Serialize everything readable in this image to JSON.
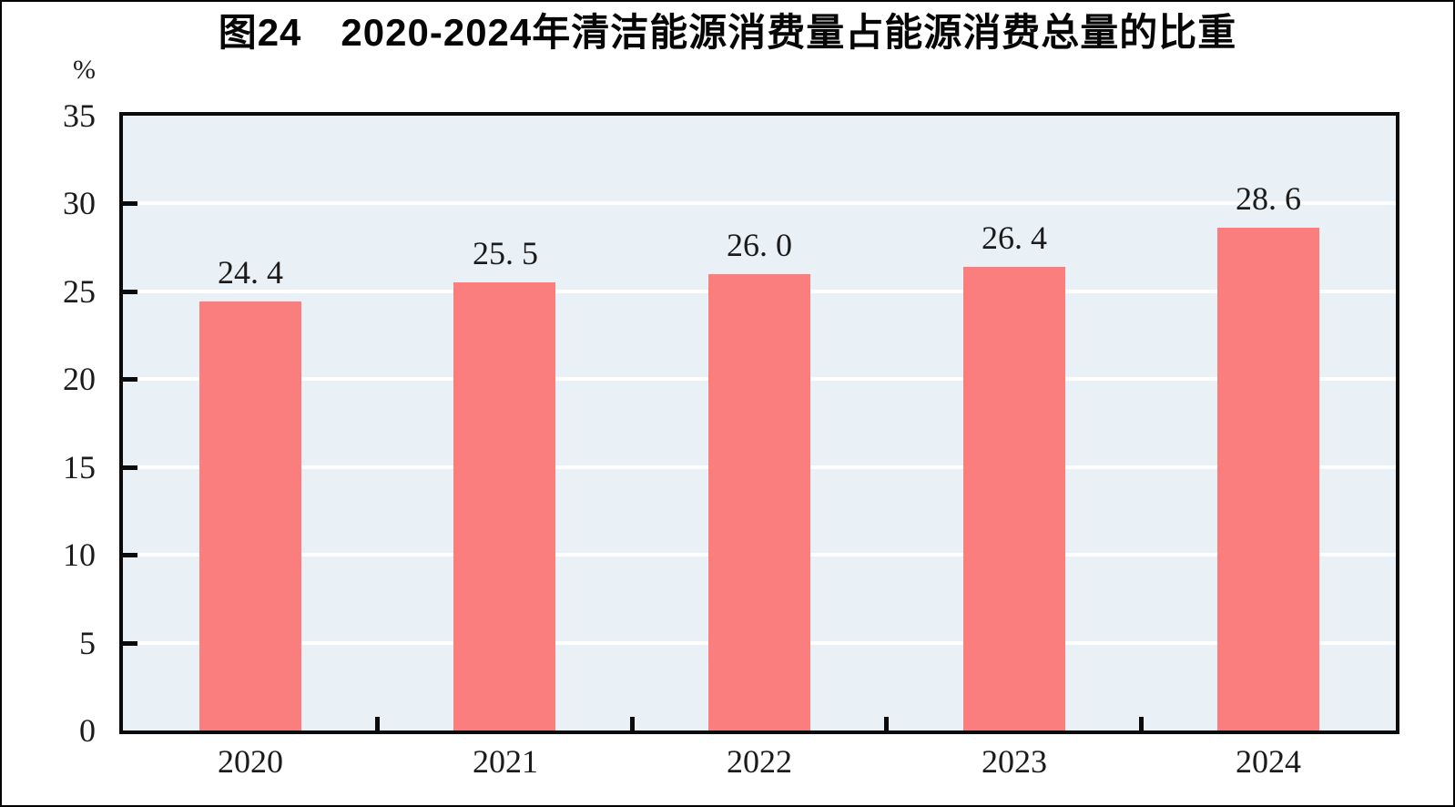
{
  "header": {
    "title": "图24　2020-2024年清洁能源消费量占能源消费总量的比重"
  },
  "chart_data": {
    "type": "bar",
    "title": "图24　2020-2024年清洁能源消费量占能源消费总量的比重",
    "unit_label": "%",
    "categories": [
      "2020",
      "2021",
      "2022",
      "2023",
      "2024"
    ],
    "values": [
      24.4,
      25.5,
      26.0,
      26.4,
      28.6
    ],
    "value_labels": [
      "24. 4",
      "25. 5",
      "26. 0",
      "26. 4",
      "28. 6"
    ],
    "xlabel": "",
    "ylabel": "%",
    "ylim": [
      0,
      35
    ],
    "ytick_interval": 5,
    "yticks": [
      0,
      5,
      10,
      15,
      20,
      25,
      30,
      35
    ],
    "grid": "horizontal",
    "legend_position": "none",
    "colors": {
      "bar": "#FB7E7E",
      "plot_background": "#EAF1F6",
      "gridline": "#FFFFFF",
      "axis": "#0B0B0B",
      "text": "#1B1B1B"
    }
  }
}
